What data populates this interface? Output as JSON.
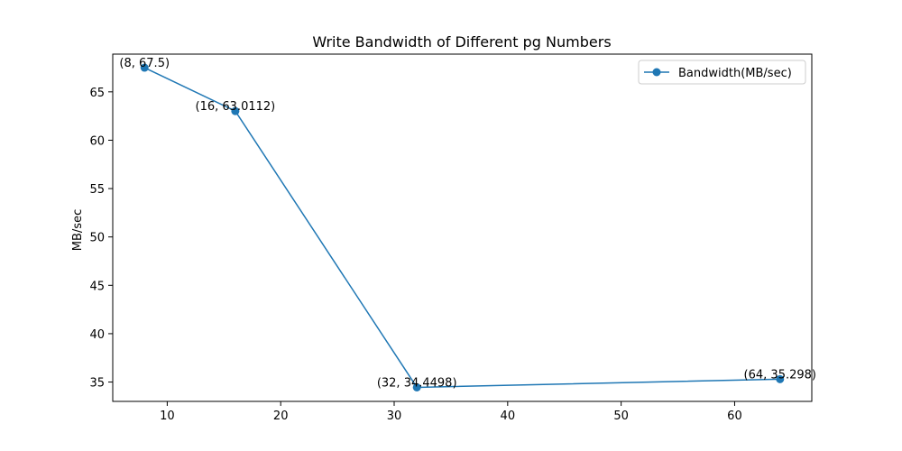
{
  "chart_data": {
    "type": "line",
    "title": "Write Bandwidth of Different pg Numbers",
    "xlabel": "",
    "ylabel": "MB/sec",
    "x": [
      8,
      16,
      32,
      64
    ],
    "series": [
      {
        "name": "Bandwidth(MB/sec)",
        "values": [
          67.5,
          63.0112,
          34.4498,
          35.298
        ],
        "color": "#1f77b4",
        "marker": "circle"
      }
    ],
    "annotations": [
      "(8, 67.5)",
      "(16, 63.0112)",
      "(32, 34.4498)",
      "(64, 35.298)"
    ],
    "xlim": [
      5.2,
      66.8
    ],
    "ylim": [
      33.0,
      68.9
    ],
    "xticks": [
      10,
      20,
      30,
      40,
      50,
      60
    ],
    "xtick_labels": [
      "10",
      "20",
      "30",
      "40",
      "50",
      "60"
    ],
    "yticks": [
      35,
      40,
      45,
      50,
      55,
      60,
      65
    ],
    "ytick_labels": [
      "35",
      "40",
      "45",
      "50",
      "55",
      "60",
      "65"
    ],
    "grid": false,
    "legend_position": "top-right"
  }
}
